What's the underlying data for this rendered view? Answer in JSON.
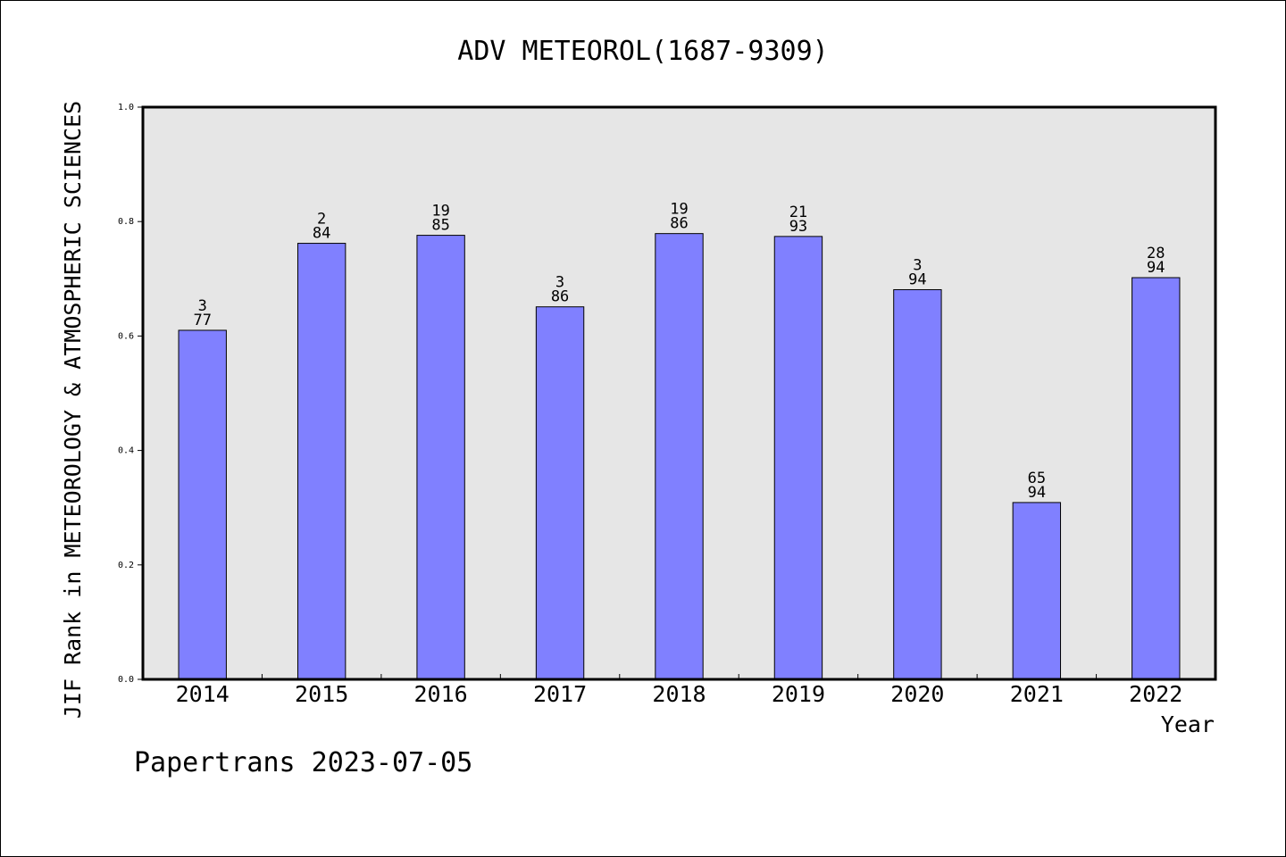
{
  "chart_data": {
    "type": "bar",
    "title": "ADV METEOROL(1687-9309)",
    "xlabel": "Year",
    "ylabel": "JIF Rank in METEOROLOGY & ATMOSPHERIC SCIENCES",
    "categories": [
      "2014",
      "2015",
      "2016",
      "2017",
      "2018",
      "2019",
      "2020",
      "2021",
      "2022"
    ],
    "values": [
      0.61,
      0.762,
      0.776,
      0.651,
      0.779,
      0.774,
      0.681,
      0.309,
      0.702
    ],
    "bar_labels": [
      {
        "top": "3",
        "bottom": "77"
      },
      {
        "top": "2",
        "bottom": "84"
      },
      {
        "top": "19",
        "bottom": "85"
      },
      {
        "top": "3",
        "bottom": "86"
      },
      {
        "top": "19",
        "bottom": "86"
      },
      {
        "top": "21",
        "bottom": "93"
      },
      {
        "top": "3",
        "bottom": "94"
      },
      {
        "top": "65",
        "bottom": "94"
      },
      {
        "top": "28",
        "bottom": "94"
      }
    ],
    "ylim": [
      0,
      1
    ],
    "yticks": [
      "0.0",
      "0.2",
      "0.4",
      "0.6",
      "0.8",
      "1.0"
    ],
    "grid": false,
    "colors": {
      "bar": "#8080ff",
      "plot_background": "#e6e6e6",
      "axis": "#000000"
    }
  },
  "footer": {
    "credit": "Papertrans 2023-07-05"
  }
}
